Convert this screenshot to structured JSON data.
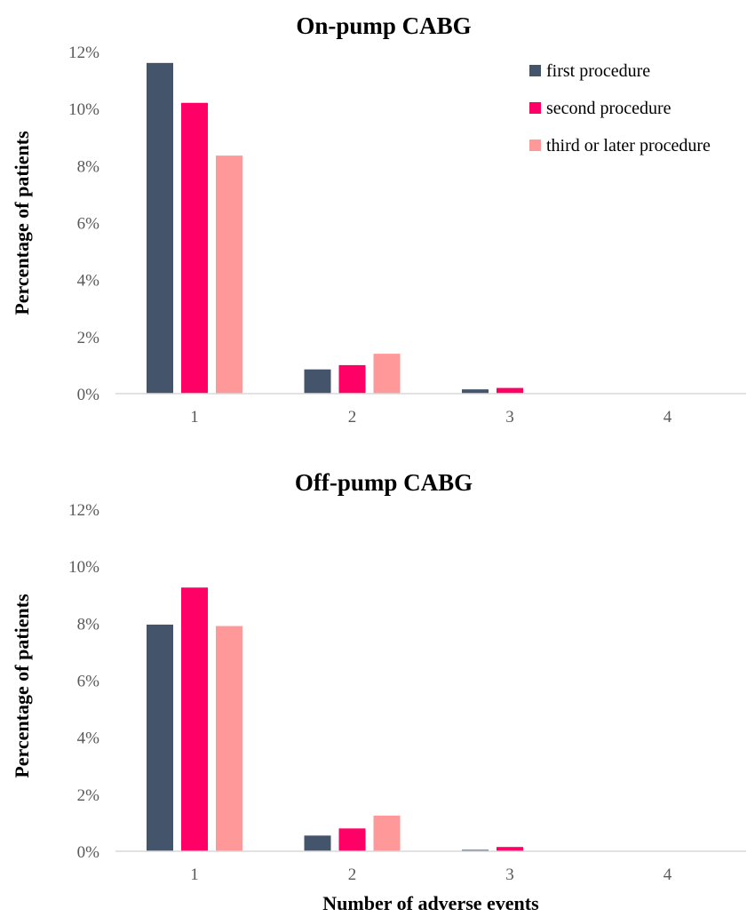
{
  "chart_data": [
    {
      "type": "bar",
      "title": "On-pump CABG",
      "xlabel": "",
      "ylabel": "Percentage of patients",
      "categories": [
        "1",
        "2",
        "3",
        "4"
      ],
      "ylim": [
        0,
        12
      ],
      "y_ticks": [
        "0%",
        "2%",
        "4%",
        "6%",
        "8%",
        "10%",
        "12%"
      ],
      "grid": false,
      "legend_position": "top-right",
      "series": [
        {
          "name": "first procedure",
          "color": "#44546a",
          "values": [
            11.6,
            0.85,
            0.15,
            0
          ]
        },
        {
          "name": "second procedure",
          "color": "#ff0066",
          "values": [
            10.2,
            1.0,
            0.2,
            0
          ]
        },
        {
          "name": "third or later procedure",
          "color": "#ff9999",
          "values": [
            8.35,
            1.4,
            0,
            0
          ]
        }
      ]
    },
    {
      "type": "bar",
      "title": "Off-pump CABG",
      "xlabel": "Number of adverse events",
      "ylabel": "Percentage of patients",
      "categories": [
        "1",
        "2",
        "3",
        "4"
      ],
      "ylim": [
        0,
        12
      ],
      "y_ticks": [
        "0%",
        "2%",
        "4%",
        "6%",
        "8%",
        "10%",
        "12%"
      ],
      "grid": false,
      "legend_position": "none",
      "series": [
        {
          "name": "first procedure",
          "color": "#44546a",
          "values": [
            7.95,
            0.55,
            0.05,
            0
          ]
        },
        {
          "name": "second procedure",
          "color": "#ff0066",
          "values": [
            9.25,
            0.8,
            0.15,
            0
          ]
        },
        {
          "name": "third or later procedure",
          "color": "#ff9999",
          "values": [
            7.9,
            1.25,
            0,
            0
          ]
        }
      ]
    }
  ]
}
